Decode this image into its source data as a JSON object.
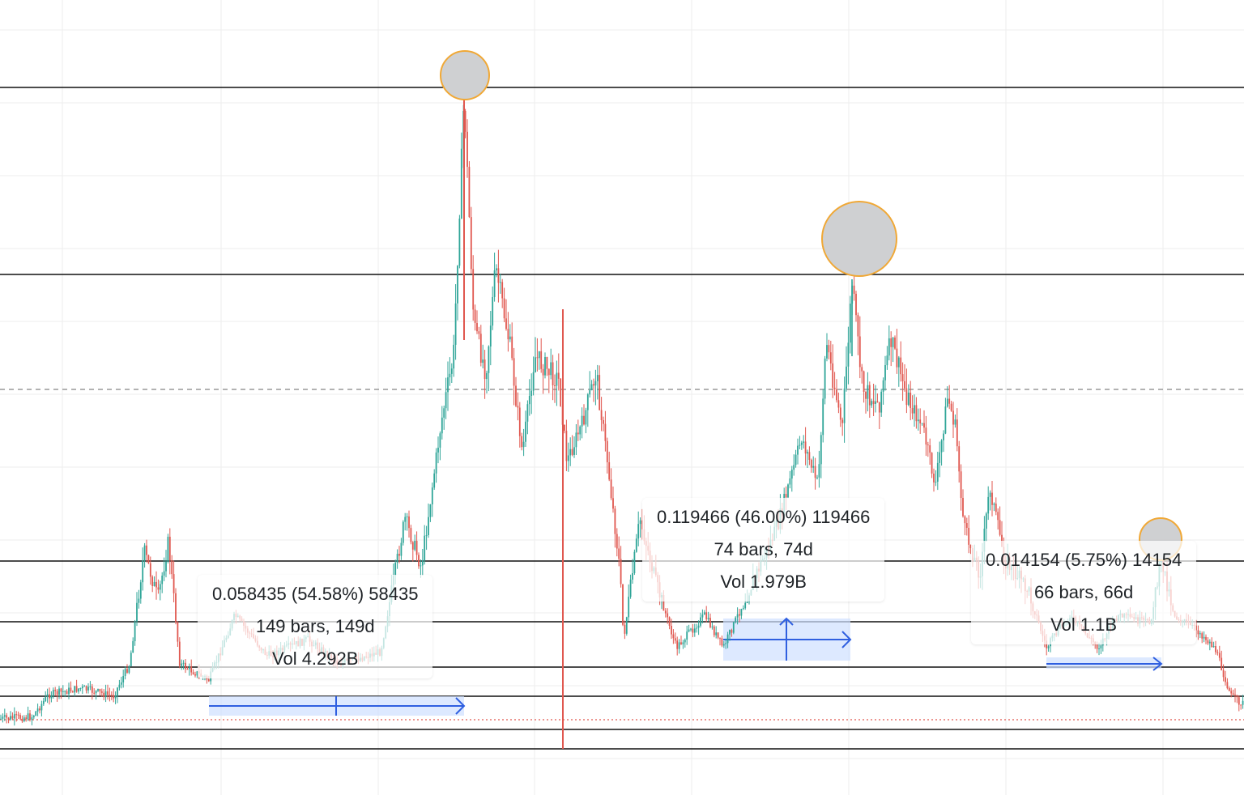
{
  "chart_data": {
    "type": "candlestick",
    "colors": {
      "up": "#2fa598",
      "down": "#e0574f",
      "horizontal_line": "#111111",
      "dashed_line": "#999999",
      "dotted_line": "#e0574f",
      "marker_fill": "#cfd0d2",
      "marker_stroke": "#f0a836",
      "measure_fill": "#cfe0ff",
      "measure_arrow": "#2f5fe0",
      "grid": "#eeeeee"
    },
    "markers": [
      "peak-circle",
      "peak-circle",
      "peak-circle"
    ],
    "measurements": [
      {
        "change": "0.058435 (54.58%) 58435",
        "duration": "149 bars, 149d",
        "volume": "Vol 4.292B"
      },
      {
        "change": "0.119466 (46.00%) 119466",
        "duration": "74 bars, 74d",
        "volume": "Vol 1.979B"
      },
      {
        "change": "0.014154 (5.75%) 14154",
        "duration": "66 bars, 66d",
        "volume": "Vol 1.1B"
      }
    ]
  }
}
